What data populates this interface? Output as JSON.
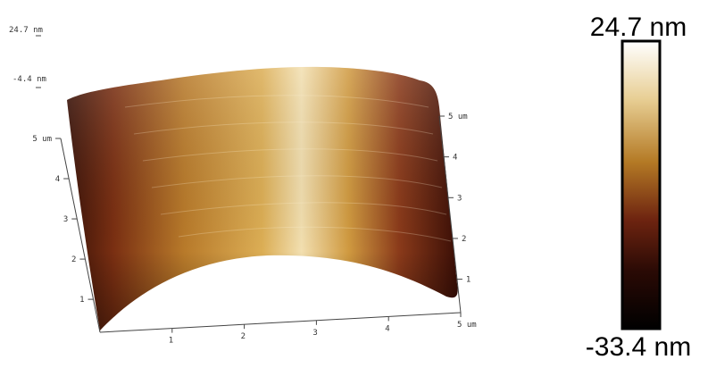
{
  "z_axis": {
    "labels": [
      "24.7 nm",
      "-4.4 nm"
    ]
  },
  "left_axis": {
    "labels": [
      "5 um",
      "4",
      "3",
      "2",
      "1"
    ]
  },
  "bottom_axis": {
    "labels": [
      "1",
      "2",
      "3",
      "4",
      "5 um"
    ]
  },
  "right_axis": {
    "labels": [
      "5 um",
      "4",
      "3",
      "2",
      "1"
    ]
  },
  "colorbar": {
    "max_label": "24.7 nm",
    "min_label": "-33.4 nm"
  }
}
